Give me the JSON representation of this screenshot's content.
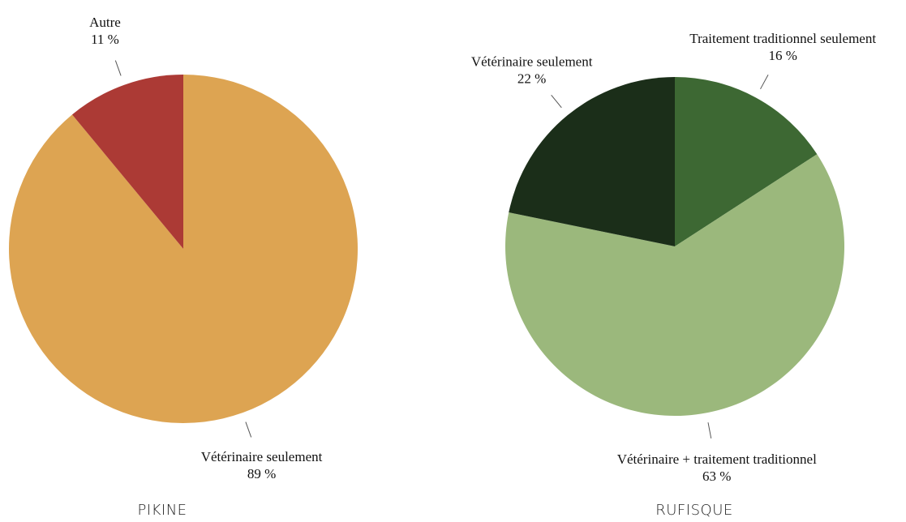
{
  "chart_data": [
    {
      "type": "pie",
      "title": "PIKINE",
      "categories": [
        "Vétérinaire seulement",
        "Autre"
      ],
      "values": [
        89,
        11
      ],
      "value_labels": [
        "89 %",
        "11 %"
      ],
      "colors": [
        "#dda452",
        "#ac3a35"
      ]
    },
    {
      "type": "pie",
      "title": "RUFISQUE",
      "categories": [
        "Traitement traditionnel seulement",
        "Vétérinaire + traitement traditionnel",
        "Vétérinaire seulement"
      ],
      "values": [
        16,
        63,
        22
      ],
      "value_labels": [
        "16 %",
        "63 %",
        "22 %"
      ],
      "colors": [
        "#3d6833",
        "#9bb87c",
        "#1b2e19"
      ]
    }
  ]
}
